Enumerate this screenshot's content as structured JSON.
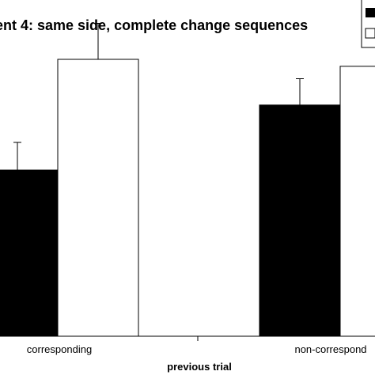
{
  "chart_data": {
    "type": "bar",
    "title": "ent 4: same side, complete change sequences",
    "xlabel": "previous trial",
    "ylabel": "",
    "categories": [
      "corresponding",
      "non-correspond"
    ],
    "series": [
      {
        "values": [
          120,
          167
        ],
        "errors": [
          20,
          19
        ],
        "color": "#000000"
      },
      {
        "values": [
          200,
          195
        ],
        "errors": [
          26,
          20
        ],
        "color": "#ffffff"
      }
    ],
    "ylim": [
      0,
      220
    ],
    "grid": false,
    "legend": "top-right"
  }
}
